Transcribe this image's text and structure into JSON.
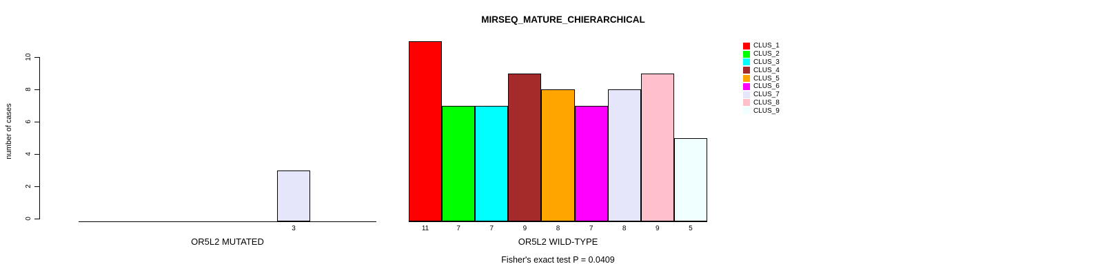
{
  "title": "MIRSEQ_MATURE_CHIERARCHICAL",
  "footnote": "Fisher's exact test P = 0.0409",
  "y_axis": {
    "label": "number of cases"
  },
  "legend": {
    "items": [
      {
        "label": "CLUS_1",
        "color": "#FF0000"
      },
      {
        "label": "CLUS_2",
        "color": "#00FF00"
      },
      {
        "label": "CLUS_3",
        "color": "#00FFFF"
      },
      {
        "label": "CLUS_4",
        "color": "#A52A2A"
      },
      {
        "label": "CLUS_5",
        "color": "#FFA500"
      },
      {
        "label": "CLUS_6",
        "color": "#FF00FF"
      },
      {
        "label": "CLUS_7",
        "color": "#E6E6FA"
      },
      {
        "label": "CLUS_8",
        "color": "#FFC0CB"
      },
      {
        "label": "CLUS_9",
        "color": "#F0FFFF"
      }
    ]
  },
  "chart_data": {
    "type": "bar",
    "title": "MIRSEQ_MATURE_CHIERARCHICAL",
    "xlabel": "",
    "ylabel": "number of cases",
    "ylim": [
      0,
      10
    ],
    "yticks": [
      0,
      2,
      4,
      6,
      8,
      10
    ],
    "grid": false,
    "legend_position": "right",
    "categories": [
      "CLUS_1",
      "CLUS_2",
      "CLUS_3",
      "CLUS_4",
      "CLUS_5",
      "CLUS_6",
      "CLUS_7",
      "CLUS_8",
      "CLUS_9"
    ],
    "colors": [
      "#FF0000",
      "#00FF00",
      "#00FFFF",
      "#A52A2A",
      "#FFA500",
      "#FF00FF",
      "#E6E6FA",
      "#FFC0CB",
      "#F0FFFF"
    ],
    "series": [
      {
        "name": "OR5L2 MUTATED",
        "values": [
          0,
          0,
          0,
          0,
          0,
          0,
          3,
          0,
          0
        ]
      },
      {
        "name": "OR5L2 WILD-TYPE",
        "values": [
          11,
          7,
          7,
          9,
          8,
          7,
          8,
          9,
          5
        ]
      }
    ],
    "bar_value_labels_shown_for_nonzero_only": true,
    "annotation": "Fisher's exact test P = 0.0409"
  }
}
